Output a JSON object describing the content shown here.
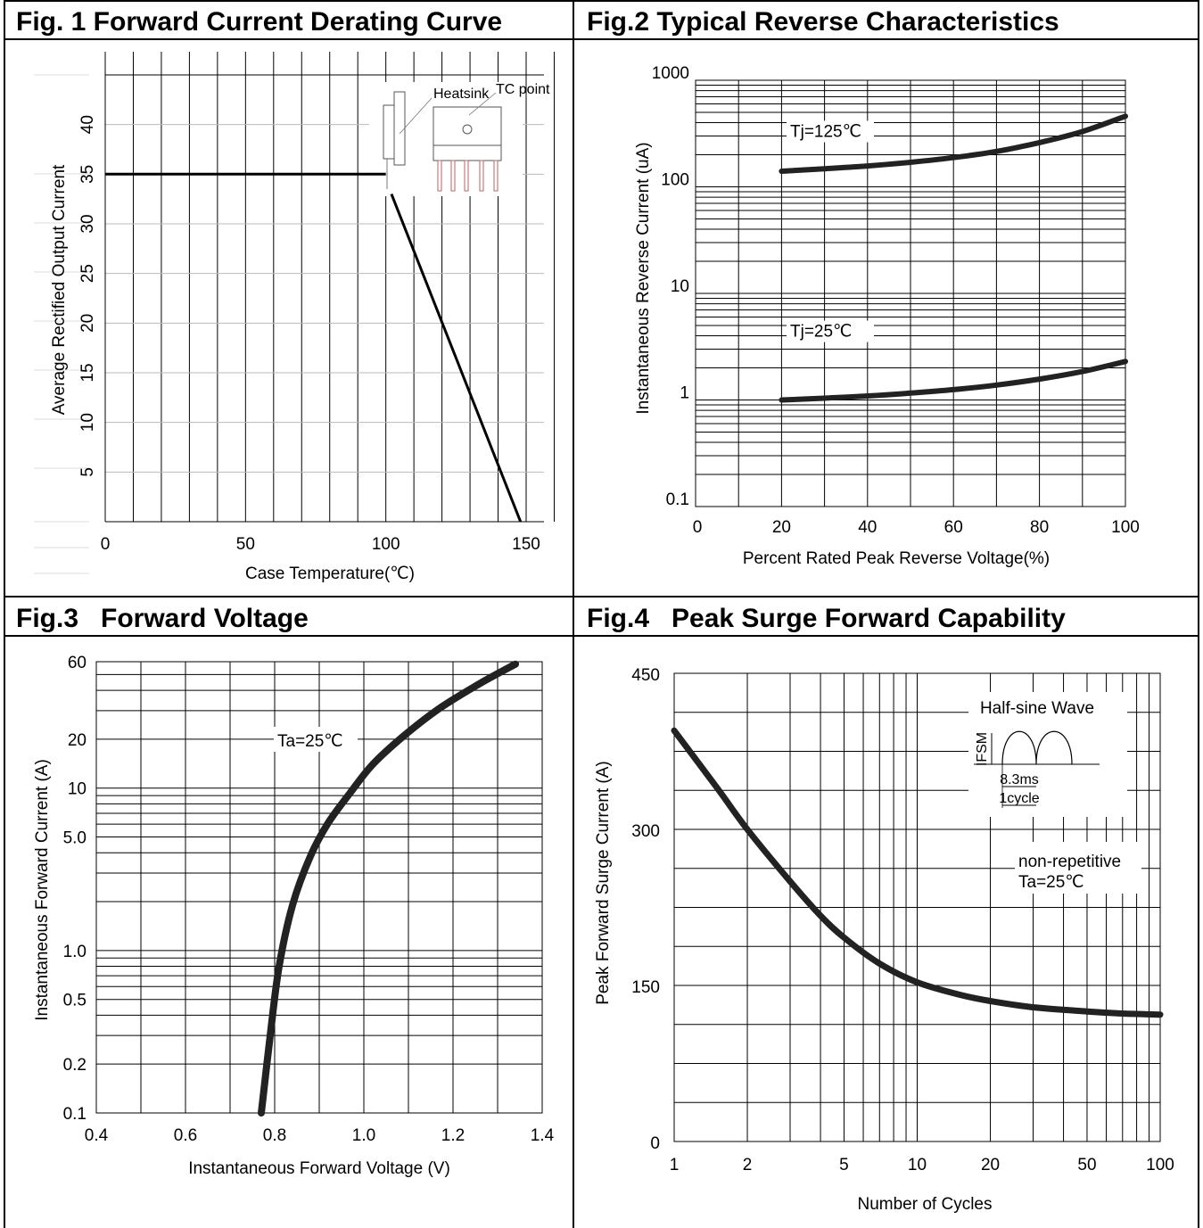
{
  "panels": [
    {
      "title": "Fig. 1 Forward Current Derating Curve"
    },
    {
      "title": "Fig.2 Typical Reverse Characteristics"
    },
    {
      "title": "Fig.3   Forward Voltage"
    },
    {
      "title": "Fig.4   Peak Surge Forward Capability"
    }
  ],
  "chart_data": [
    {
      "type": "line",
      "title": "Fig. 1 Forward Current Derating Curve",
      "xlabel": "Case Temperature(℃)",
      "ylabel": "Average Rectified Output Current",
      "xlim": [
        0,
        150
      ],
      "ylim": [
        0,
        45
      ],
      "xticks": [
        "0",
        "50",
        "100",
        "150"
      ],
      "yticks": [
        "5",
        "10",
        "15",
        "20",
        "25",
        "30",
        "35",
        "40"
      ],
      "grid": true,
      "series": [
        {
          "x": [
            0,
            100,
            148
          ],
          "y": [
            35,
            35,
            0
          ]
        }
      ],
      "inset_labels": {
        "heatsink": "Heatsink",
        "tc_point": "TC point"
      }
    },
    {
      "type": "line",
      "title": "Fig.2 Typical Reverse Characteristics",
      "xlabel": "Percent Rated Peak Reverse Voltage(%)",
      "ylabel": "Instantaneous Reverse Current (uA)",
      "xlim": [
        0,
        100
      ],
      "ylim": [
        0.1,
        1000
      ],
      "yscale": "log",
      "xticks": [
        "0",
        "20",
        "40",
        "60",
        "80",
        "100"
      ],
      "yticks": [
        "0.1",
        "1",
        "10",
        "100",
        "1000"
      ],
      "grid": true,
      "series": [
        {
          "name": "Tj=125℃",
          "x": [
            20,
            30,
            40,
            50,
            60,
            70,
            80,
            90,
            100
          ],
          "y": [
            140,
            148,
            157,
            170,
            188,
            215,
            260,
            330,
            460
          ]
        },
        {
          "name": "Tj=25℃",
          "x": [
            20,
            30,
            40,
            50,
            60,
            70,
            80,
            90,
            100
          ],
          "y": [
            1.0,
            1.04,
            1.09,
            1.16,
            1.25,
            1.38,
            1.57,
            1.85,
            2.3
          ]
        }
      ]
    },
    {
      "type": "line",
      "title": "Fig.3 Forward Voltage",
      "xlabel": "Instantaneous Forward Voltage (V)",
      "ylabel": "Instantaneous Forward Current (A)",
      "xlim": [
        0.4,
        1.4
      ],
      "ylim": [
        0.1,
        60
      ],
      "yscale": "log",
      "xticks": [
        "0.4",
        "0.6",
        "0.8",
        "1.0",
        "1.2",
        "1.4"
      ],
      "yticks": [
        "0.1",
        "0.2",
        "0.5",
        "1.0",
        "5.0",
        "10",
        "20",
        "60"
      ],
      "grid": true,
      "annotation": "Ta=25℃",
      "series": [
        {
          "x": [
            0.77,
            0.79,
            0.81,
            0.84,
            0.88,
            0.92,
            0.97,
            1.02,
            1.09,
            1.17,
            1.26,
            1.34
          ],
          "y": [
            0.1,
            0.3,
            0.8,
            1.9,
            3.8,
            6.1,
            9.4,
            14,
            21,
            31,
            44,
            58
          ]
        }
      ]
    },
    {
      "type": "line",
      "title": "Fig.4 Peak Surge Forward Capability",
      "xlabel": "Number of Cycles",
      "ylabel": "Peak Forward Surge Current (A)",
      "xlim": [
        1,
        100
      ],
      "ylim": [
        0,
        450
      ],
      "xscale": "log",
      "xticks": [
        "1",
        "2",
        "5",
        "10",
        "20",
        "50",
        "100"
      ],
      "yticks": [
        "0",
        "150",
        "300",
        "450"
      ],
      "grid": true,
      "annotation": [
        "non-repetitive",
        "Ta=25℃"
      ],
      "inset_labels": {
        "title": "Half-sine Wave",
        "ifsm": "IFSM",
        "half_period": "8.3ms",
        "period": "1cycle"
      },
      "series": [
        {
          "x": [
            1,
            1.5,
            2,
            3,
            4,
            5,
            7,
            10,
            15,
            20,
            30,
            50,
            70,
            100
          ],
          "y": [
            395,
            340,
            300,
            250,
            217,
            196,
            171,
            153,
            141,
            135,
            129,
            125,
            123,
            122
          ]
        }
      ]
    }
  ]
}
